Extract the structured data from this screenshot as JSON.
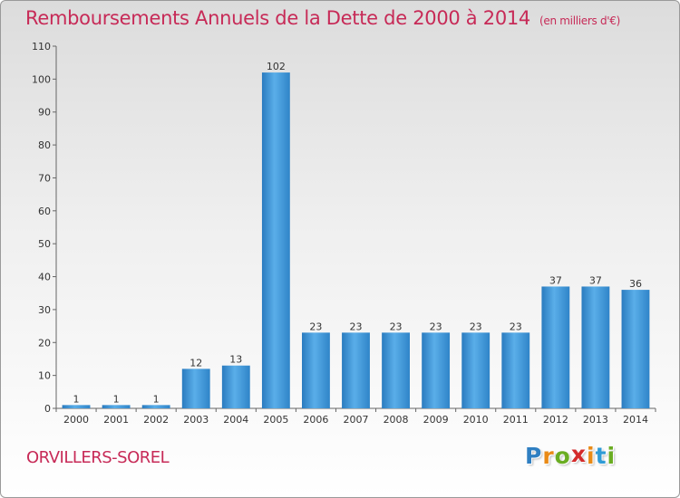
{
  "chart_data": {
    "type": "bar",
    "title": "Remboursements Annuels de la Dette de 2000 à 2014",
    "subtitle": "(en milliers d'€)",
    "categories": [
      "2000",
      "2001",
      "2002",
      "2003",
      "2004",
      "2005",
      "2006",
      "2007",
      "2008",
      "2009",
      "2010",
      "2011",
      "2012",
      "2013",
      "2014"
    ],
    "values": [
      1,
      1,
      1,
      12,
      13,
      102,
      23,
      23,
      23,
      23,
      23,
      23,
      37,
      37,
      36
    ],
    "ylim": [
      0,
      110
    ],
    "yticks": [
      0,
      10,
      20,
      30,
      40,
      50,
      60,
      70,
      80,
      90,
      100,
      110
    ],
    "grid": false,
    "xlabel": "",
    "ylabel": "",
    "bar_color": "#3d94d8"
  },
  "footer": {
    "commune": "ORVILLERS-SOREL",
    "logo_letters": [
      {
        "char": "P",
        "color": "#2f7fc2"
      },
      {
        "char": "r",
        "color": "#e98a16"
      },
      {
        "char": "o",
        "color": "#6aad22"
      },
      {
        "char": "x",
        "color": "#d42b2b"
      },
      {
        "char": "i",
        "color": "#e98a16"
      },
      {
        "char": "t",
        "color": "#2f9bd6"
      },
      {
        "char": "i",
        "color": "#6aad22"
      }
    ]
  }
}
